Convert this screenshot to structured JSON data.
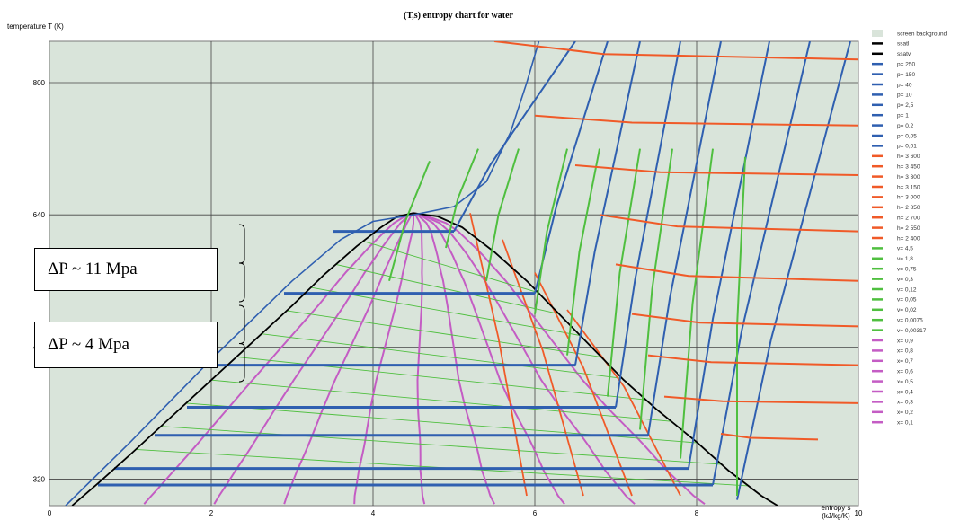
{
  "chart_data": {
    "type": "line",
    "title": "(T,s) entropy chart for water",
    "ylabel": "temperature T (K)",
    "xlabel": "entropy s",
    "xunit": "(kJ/kg/K)",
    "xlim": [
      0,
      10
    ],
    "ylim": [
      288,
      850
    ],
    "x_ticks": [
      0,
      2,
      4,
      6,
      8,
      10
    ],
    "y_ticks": [
      320,
      480,
      640,
      800
    ],
    "grid": true,
    "legend_position": "right",
    "background_color": "#d9e4da",
    "legend": [
      {
        "label": "screen background",
        "color": "#d9e4da",
        "swatch": "box"
      },
      {
        "label": "ssatl",
        "color": "#000000"
      },
      {
        "label": "ssatv",
        "color": "#000000"
      },
      {
        "label": "p= 250",
        "color": "#2f5fb0"
      },
      {
        "label": "p= 150",
        "color": "#2f5fb0"
      },
      {
        "label": "p= 40",
        "color": "#2f5fb0"
      },
      {
        "label": "p= 10",
        "color": "#2f5fb0"
      },
      {
        "label": "p= 2,5",
        "color": "#2f5fb0"
      },
      {
        "label": "p= 1",
        "color": "#2f5fb0"
      },
      {
        "label": "p= 0,2",
        "color": "#2f5fb0"
      },
      {
        "label": "p= 0,05",
        "color": "#2f5fb0"
      },
      {
        "label": "p= 0,01",
        "color": "#2f5fb0"
      },
      {
        "label": "h= 3 600",
        "color": "#f05a28"
      },
      {
        "label": "h= 3 450",
        "color": "#f05a28"
      },
      {
        "label": "h= 3 300",
        "color": "#f05a28"
      },
      {
        "label": "h= 3 150",
        "color": "#f05a28"
      },
      {
        "label": "h= 3 000",
        "color": "#f05a28"
      },
      {
        "label": "h= 2 850",
        "color": "#f05a28"
      },
      {
        "label": "h= 2 700",
        "color": "#f05a28"
      },
      {
        "label": "h= 2 550",
        "color": "#f05a28"
      },
      {
        "label": "h= 2 400",
        "color": "#f05a28"
      },
      {
        "label": "v= 4,5",
        "color": "#4fbf3f"
      },
      {
        "label": "v= 1,8",
        "color": "#4fbf3f"
      },
      {
        "label": "v= 0,75",
        "color": "#4fbf3f"
      },
      {
        "label": "v= 0,3",
        "color": "#4fbf3f"
      },
      {
        "label": "v= 0,12",
        "color": "#4fbf3f"
      },
      {
        "label": "v= 0,05",
        "color": "#4fbf3f"
      },
      {
        "label": "v= 0,02",
        "color": "#4fbf3f"
      },
      {
        "label": "v= 0,0075",
        "color": "#4fbf3f"
      },
      {
        "label": "v= 0,00317",
        "color": "#4fbf3f"
      },
      {
        "label": "x= 0,9",
        "color": "#c45cc4"
      },
      {
        "label": "x= 0,8",
        "color": "#c45cc4"
      },
      {
        "label": "x= 0,7",
        "color": "#c45cc4"
      },
      {
        "label": "x= 0,6",
        "color": "#c45cc4"
      },
      {
        "label": "x= 0,5",
        "color": "#c45cc4"
      },
      {
        "label": "x= 0,4",
        "color": "#c45cc4"
      },
      {
        "label": "x= 0,3",
        "color": "#c45cc4"
      },
      {
        "label": "x= 0,2",
        "color": "#c45cc4"
      },
      {
        "label": "x= 0,1",
        "color": "#c45cc4"
      }
    ],
    "saturation_dome": {
      "liquid": [
        [
          0.28,
          288
        ],
        [
          0.6,
          315
        ],
        [
          1.0,
          350
        ],
        [
          1.5,
          395
        ],
        [
          2.0,
          440
        ],
        [
          2.5,
          485
        ],
        [
          3.0,
          530
        ],
        [
          3.4,
          568
        ],
        [
          3.8,
          602
        ],
        [
          4.1,
          625
        ],
        [
          4.3,
          638
        ],
        [
          4.5,
          642
        ]
      ],
      "vapor": [
        [
          4.5,
          642
        ],
        [
          4.8,
          638
        ],
        [
          5.1,
          625
        ],
        [
          5.5,
          595
        ],
        [
          5.9,
          560
        ],
        [
          6.3,
          520
        ],
        [
          6.7,
          480
        ],
        [
          7.1,
          440
        ],
        [
          7.5,
          405
        ],
        [
          8.0,
          365
        ],
        [
          8.4,
          330
        ],
        [
          8.8,
          300
        ],
        [
          9.0,
          288
        ]
      ]
    },
    "isobar_segments": [
      {
        "T": 620,
        "s_liq": 3.5,
        "s_vap": 5.0
      },
      {
        "T": 545,
        "s_liq": 2.9,
        "s_vap": 6.0
      },
      {
        "T": 458,
        "s_liq": 2.0,
        "s_vap": 6.5
      },
      {
        "T": 407,
        "s_liq": 1.7,
        "s_vap": 7.0
      },
      {
        "T": 373,
        "s_liq": 1.3,
        "s_vap": 7.4
      },
      {
        "T": 333,
        "s_liq": 0.8,
        "s_vap": 7.9
      },
      {
        "T": 313,
        "s_liq": 0.6,
        "s_vap": 8.2
      }
    ],
    "annotations": [
      {
        "text": "ΔP ~ 11 Mpa"
      },
      {
        "text": "ΔP ~ 4 Mpa"
      }
    ]
  }
}
